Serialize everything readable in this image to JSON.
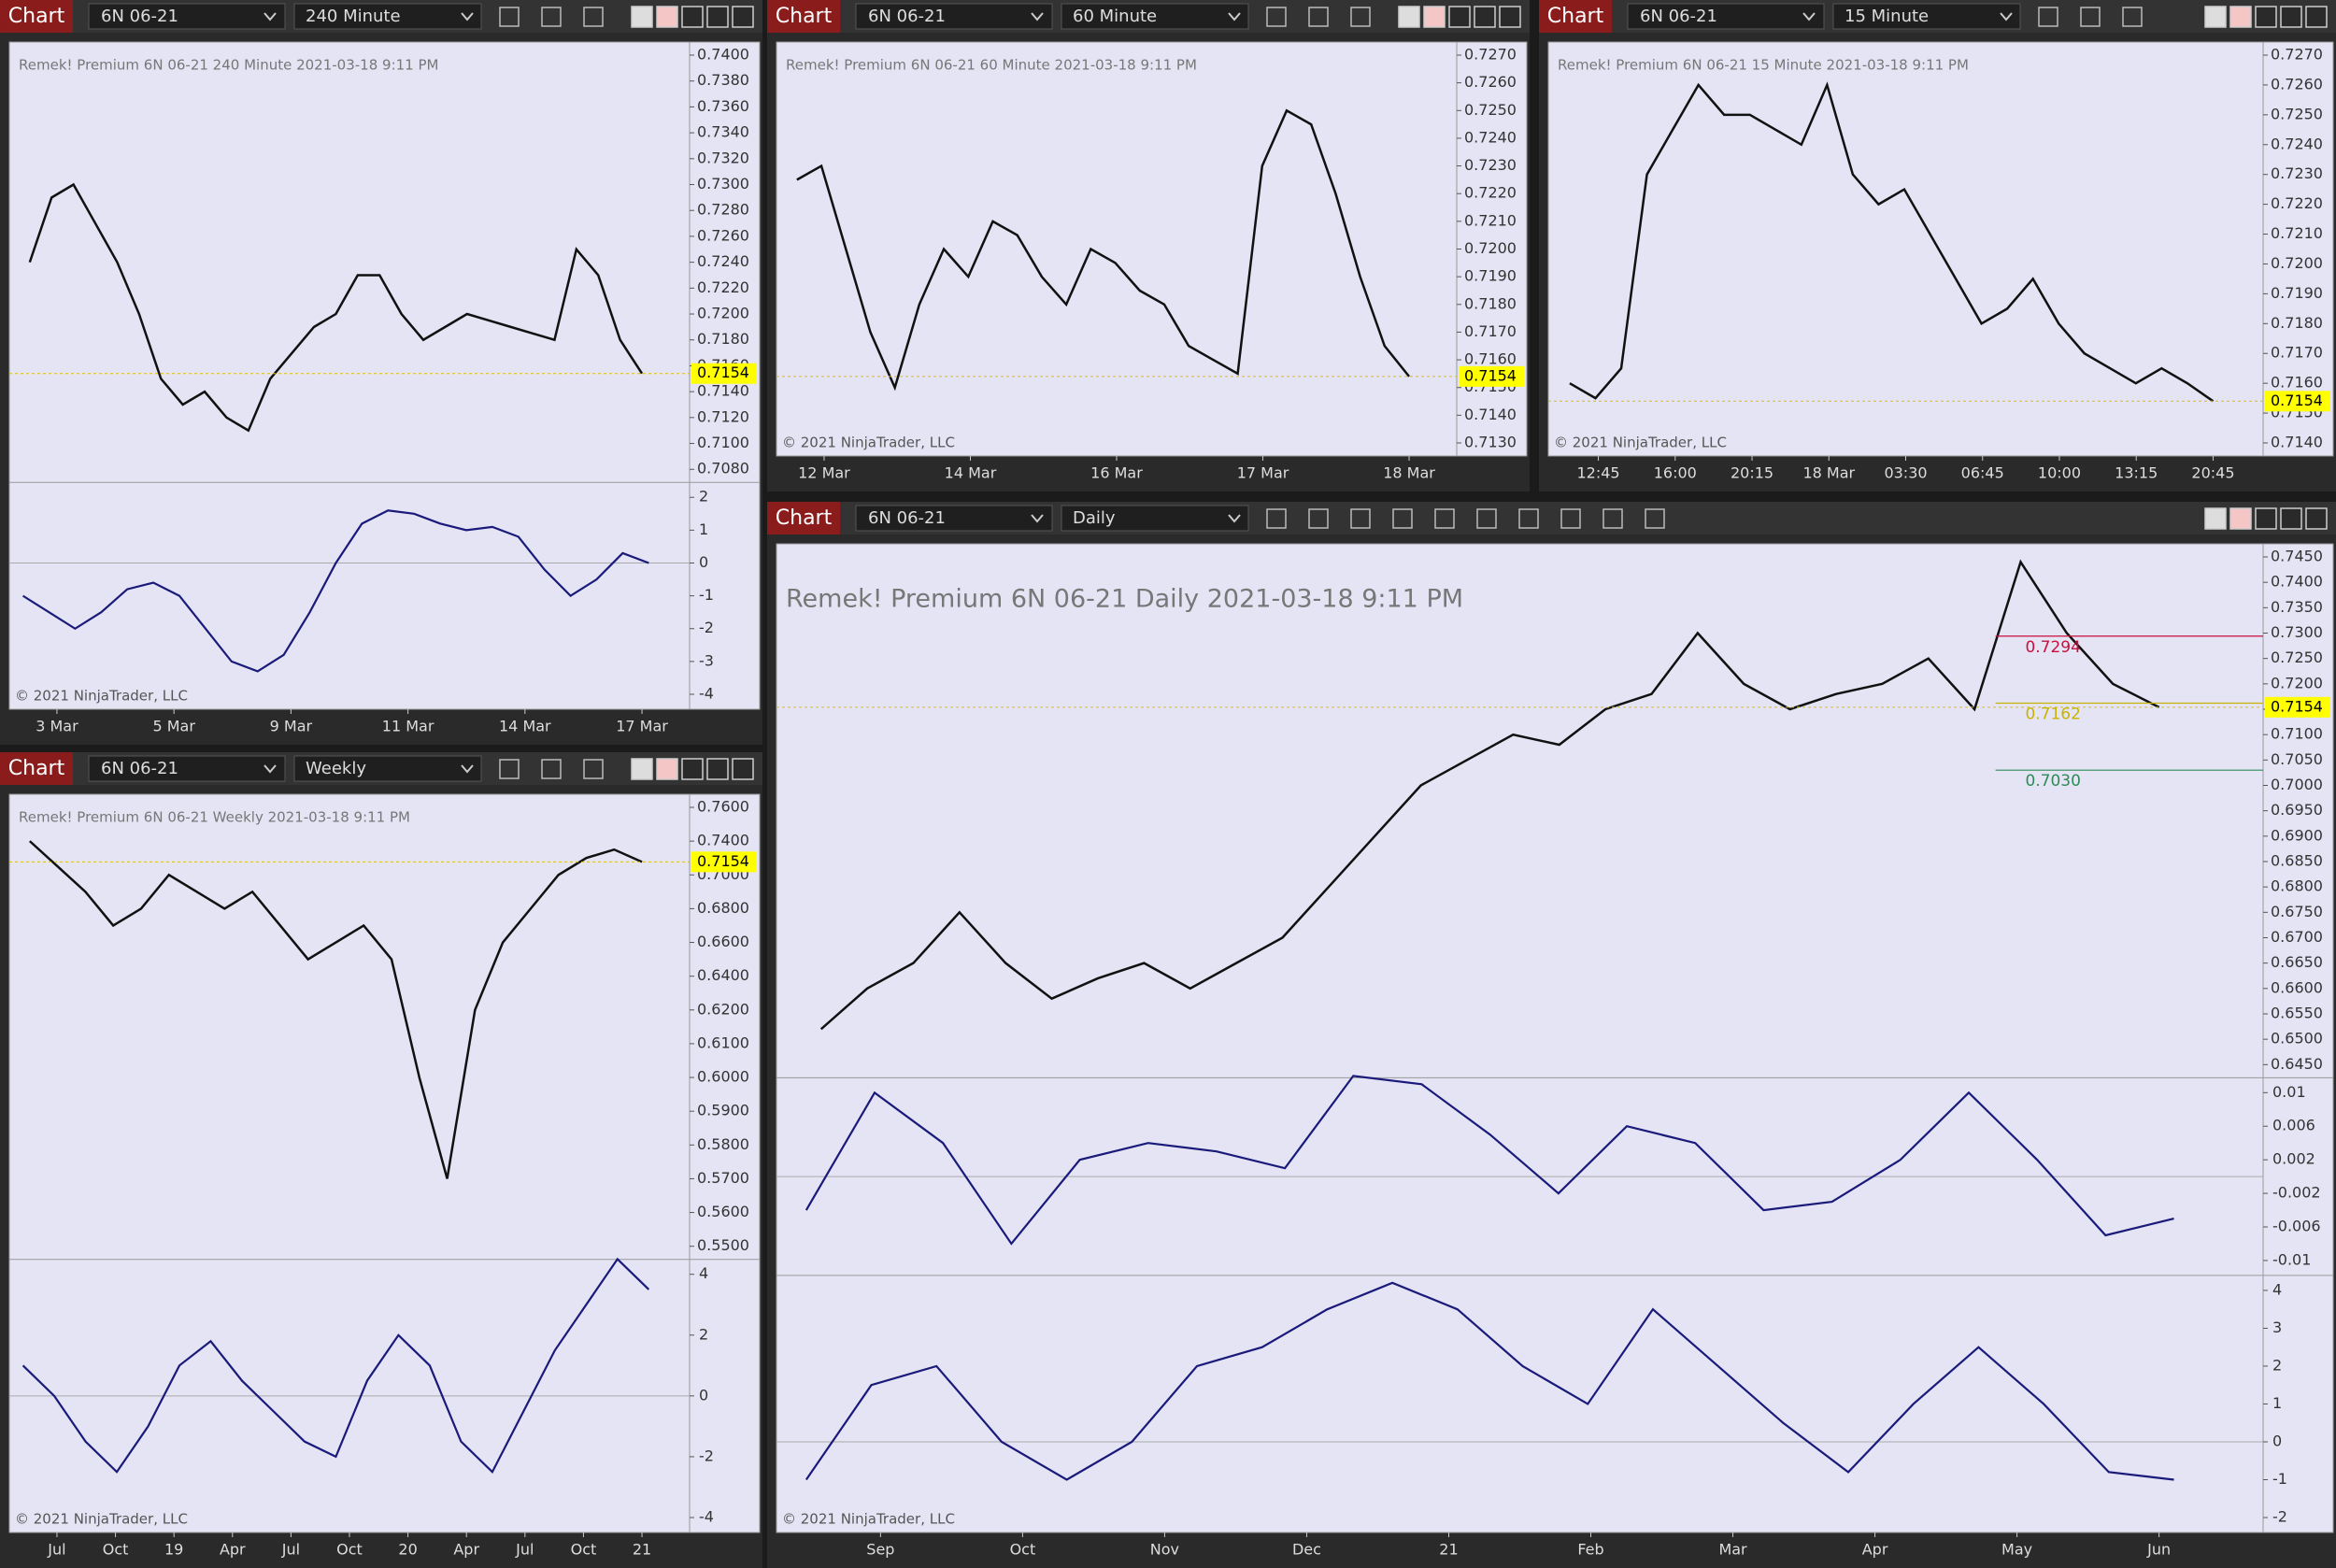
{
  "panels": [
    {
      "toolbar": {
        "tab": "Chart",
        "instrument": "6N 06-21",
        "interval": "240 Minute"
      },
      "header": "Remek!  Premium  6N 06-21  240 Minute  2021-03-18 9:11 PM",
      "yticks": [
        "0.7400",
        "0.7380",
        "0.7360",
        "0.7340",
        "0.7320",
        "0.7300",
        "0.7280",
        "0.7260",
        "0.7240",
        "0.7220",
        "0.7200",
        "0.7180",
        "0.7160",
        "0.7140",
        "0.7120",
        "0.7100",
        "0.7080"
      ],
      "price_label": "0.7154",
      "closes": [
        0.724,
        0.729,
        0.73,
        0.727,
        0.724,
        0.72,
        0.715,
        0.713,
        0.714,
        0.712,
        0.711,
        0.715,
        0.717,
        0.719,
        0.72,
        0.723,
        0.723,
        0.72,
        0.718,
        0.719,
        0.72,
        0.7195,
        0.719,
        0.7185,
        0.718,
        0.725,
        0.723,
        0.718,
        0.7154
      ],
      "indicators": [
        {
          "ticks": [
            "2",
            "1",
            "0",
            "-1",
            "-2",
            "-3",
            "-4"
          ],
          "values": [
            -1,
            -1.5,
            -2,
            -1.5,
            -0.8,
            -0.6,
            -1,
            -2,
            -3,
            -3.3,
            -2.8,
            -1.5,
            0,
            1.2,
            1.6,
            1.5,
            1.2,
            1,
            1.1,
            0.8,
            -0.2,
            -1,
            -0.5,
            0.3,
            0
          ]
        }
      ],
      "x_labels": [
        "3 Mar",
        "5 Mar",
        "9 Mar",
        "11 Mar",
        "14 Mar",
        "17 Mar"
      ],
      "copyright": "© 2021 NinjaTrader, LLC"
    },
    {
      "toolbar": {
        "tab": "Chart",
        "instrument": "6N 06-21",
        "interval": "60 Minute"
      },
      "header": "Remek!  Premium  6N 06-21  60 Minute  2021-03-18 9:11 PM",
      "yticks": [
        "0.7270",
        "0.7260",
        "0.7250",
        "0.7240",
        "0.7230",
        "0.7220",
        "0.7210",
        "0.7200",
        "0.7190",
        "0.7180",
        "0.7170",
        "0.7160",
        "0.7150",
        "0.7140",
        "0.7130"
      ],
      "price_label": "0.7154",
      "closes": [
        0.7225,
        0.723,
        0.72,
        0.717,
        0.715,
        0.718,
        0.72,
        0.719,
        0.721,
        0.7205,
        0.719,
        0.718,
        0.72,
        0.7195,
        0.7185,
        0.718,
        0.7165,
        0.716,
        0.7155,
        0.723,
        0.725,
        0.7245,
        0.722,
        0.719,
        0.7165,
        0.7154
      ],
      "indicators": [],
      "x_labels": [
        "12 Mar",
        "14 Mar",
        "16 Mar",
        "17 Mar",
        "18 Mar"
      ],
      "copyright": "© 2021 NinjaTrader, LLC"
    },
    {
      "toolbar": {
        "tab": "Chart",
        "instrument": "6N 06-21",
        "interval": "15 Minute"
      },
      "header": "Remek!  Premium  6N 06-21  15 Minute  2021-03-18 9:11 PM",
      "yticks": [
        "0.7270",
        "0.7260",
        "0.7250",
        "0.7240",
        "0.7230",
        "0.7220",
        "0.7210",
        "0.7200",
        "0.7190",
        "0.7180",
        "0.7170",
        "0.7160",
        "0.7150",
        "0.7140"
      ],
      "price_label": "0.7154",
      "closes": [
        0.716,
        0.7155,
        0.7165,
        0.723,
        0.7245,
        0.726,
        0.725,
        0.725,
        0.7245,
        0.724,
        0.726,
        0.723,
        0.722,
        0.7225,
        0.721,
        0.7195,
        0.718,
        0.7185,
        0.7195,
        0.718,
        0.717,
        0.7165,
        0.716,
        0.7165,
        0.716,
        0.7154
      ],
      "indicators": [],
      "x_labels": [
        "12:45",
        "16:00",
        "20:15",
        "18 Mar",
        "03:30",
        "06:45",
        "10:00",
        "13:15",
        "20:45"
      ],
      "copyright": "© 2021 NinjaTrader, LLC"
    },
    {
      "toolbar": {
        "tab": "Chart",
        "instrument": "6N 06-21",
        "interval": "Weekly"
      },
      "header": "Remek!  Premium  6N 06-21  Weekly  2021-03-18 9:11 PM",
      "yticks": [
        "0.7600",
        "0.7400",
        "0.7000",
        "0.6800",
        "0.6600",
        "0.6400",
        "0.6200",
        "0.6100",
        "0.6000",
        "0.5900",
        "0.5800",
        "0.5700",
        "0.5600",
        "0.5500"
      ],
      "price_label": "0.7154",
      "closes": [
        0.74,
        0.71,
        0.69,
        0.67,
        0.68,
        0.7,
        0.69,
        0.68,
        0.69,
        0.67,
        0.65,
        0.66,
        0.67,
        0.65,
        0.6,
        0.57,
        0.62,
        0.66,
        0.68,
        0.7,
        0.72,
        0.73,
        0.7154
      ],
      "indicators": [
        {
          "ticks": [
            "4",
            "2",
            "0",
            "-2",
            "-4"
          ],
          "values": [
            1,
            0,
            -1.5,
            -2.5,
            -1,
            1,
            1.8,
            0.5,
            -0.5,
            -1.5,
            -2,
            0.5,
            2,
            1,
            -1.5,
            -2.5,
            -0.5,
            1.5,
            3,
            4.5,
            3.5
          ]
        }
      ],
      "x_labels": [
        "Jul",
        "Oct",
        "19",
        "Apr",
        "Jul",
        "Oct",
        "20",
        "Apr",
        "Jul",
        "Oct",
        "21"
      ],
      "copyright": "© 2021 NinjaTrader, LLC"
    },
    {
      "toolbar": {
        "tab": "Chart",
        "instrument": "6N 06-21",
        "interval": "Daily"
      },
      "header": "Remek!  Premium  6N 06-21  Daily  2021-03-18 9:11 PM",
      "yticks": [
        "0.7450",
        "0.7400",
        "0.7350",
        "0.7300",
        "0.7250",
        "0.7200",
        "0.7150",
        "0.7100",
        "0.7050",
        "0.7000",
        "0.6950",
        "0.6900",
        "0.6850",
        "0.6800",
        "0.6750",
        "0.6700",
        "0.6650",
        "0.6600",
        "0.6550",
        "0.6500",
        "0.6450"
      ],
      "price_label": "0.7154",
      "annotations": [
        {
          "text": "0.7294",
          "color": "#c8103c"
        },
        {
          "text": "0.7162",
          "color": "#c8b400"
        },
        {
          "text": "0.7030",
          "color": "#2e8b57"
        }
      ],
      "closes": [
        0.652,
        0.66,
        0.665,
        0.675,
        0.665,
        0.658,
        0.662,
        0.665,
        0.66,
        0.665,
        0.67,
        0.68,
        0.69,
        0.7,
        0.705,
        0.71,
        0.708,
        0.715,
        0.718,
        0.73,
        0.72,
        0.715,
        0.718,
        0.72,
        0.725,
        0.715,
        0.744,
        0.73,
        0.72,
        0.7154
      ],
      "indicators": [
        {
          "ticks": [
            "0.01",
            "0.006",
            "0.002",
            "-0.002",
            "-0.006",
            "-0.01"
          ],
          "values": [
            -0.004,
            0.01,
            0.004,
            -0.008,
            0.002,
            0.004,
            0.003,
            0.001,
            0.012,
            0.011,
            0.005,
            -0.002,
            0.006,
            0.004,
            -0.004,
            -0.003,
            0.002,
            0.01,
            0.002,
            -0.007,
            -0.005
          ]
        },
        {
          "ticks": [
            "4",
            "3",
            "2",
            "1",
            "0",
            "-1",
            "-2"
          ],
          "values": [
            -1,
            1.5,
            2,
            0,
            -1,
            0,
            2,
            2.5,
            3.5,
            4.2,
            3.5,
            2,
            1,
            3.5,
            2,
            0.5,
            -0.8,
            1,
            2.5,
            1,
            -0.8,
            -1
          ]
        }
      ],
      "x_labels": [
        "Sep",
        "Oct",
        "Nov",
        "Dec",
        "21",
        "Feb",
        "Mar",
        "Apr",
        "May",
        "Jun"
      ],
      "copyright": "© 2021 NinjaTrader, LLC"
    }
  ]
}
